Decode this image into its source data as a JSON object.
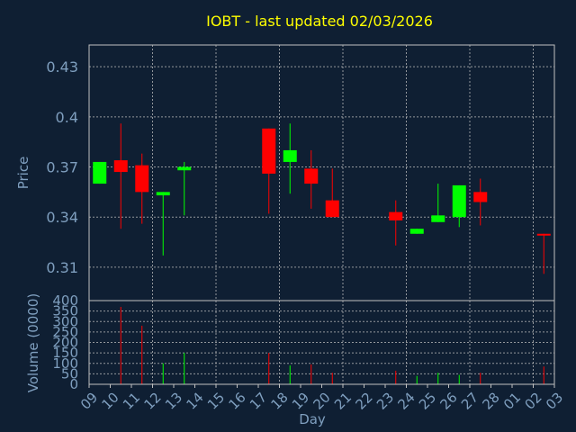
{
  "chart_data": {
    "type": "candlestick",
    "title": "IOBT - last updated 02/03/2026",
    "xlabel": "Day",
    "price_panel": {
      "ylabel": "Price",
      "ylim": [
        0.29,
        0.443
      ],
      "yticks": [
        "0.31",
        "0.34",
        "0.37",
        "0.4",
        "0.43"
      ]
    },
    "volume_panel": {
      "ylabel": "Volume (0000)",
      "ylim": [
        0,
        400
      ],
      "yticks": [
        "0",
        "50",
        "100",
        "150",
        "200",
        "250",
        "300",
        "350",
        "400"
      ]
    },
    "x_ticks": [
      "09",
      "10",
      "11",
      "12",
      "13",
      "14",
      "15",
      "16",
      "17",
      "18",
      "19",
      "20",
      "21",
      "22",
      "23",
      "24",
      "25",
      "26",
      "27",
      "28",
      "01",
      "02",
      "03"
    ],
    "grid": true,
    "colors": {
      "up": "#00ff00",
      "down": "#ff0000",
      "background": "#0f1f33",
      "text": "#7f9fbf",
      "title": "#ffff00"
    },
    "candles": [
      {
        "day": "09",
        "open": 0.36,
        "high": 0.373,
        "low": 0.36,
        "close": 0.373,
        "volume": 0
      },
      {
        "day": "10",
        "open": 0.374,
        "high": 0.396,
        "low": 0.333,
        "close": 0.367,
        "volume": 370
      },
      {
        "day": "11",
        "open": 0.371,
        "high": 0.378,
        "low": 0.336,
        "close": 0.355,
        "volume": 280
      },
      {
        "day": "12",
        "open": 0.353,
        "high": 0.355,
        "low": 0.317,
        "close": 0.355,
        "volume": 100
      },
      {
        "day": "13",
        "open": 0.368,
        "high": 0.373,
        "low": 0.341,
        "close": 0.37,
        "volume": 150
      },
      {
        "day": "17",
        "open": 0.393,
        "high": 0.393,
        "low": 0.342,
        "close": 0.366,
        "volume": 150
      },
      {
        "day": "18",
        "open": 0.373,
        "high": 0.396,
        "low": 0.354,
        "close": 0.38,
        "volume": 90
      },
      {
        "day": "19",
        "open": 0.369,
        "high": 0.38,
        "low": 0.345,
        "close": 0.36,
        "volume": 95
      },
      {
        "day": "20",
        "open": 0.35,
        "high": 0.369,
        "low": 0.34,
        "close": 0.34,
        "volume": 55
      },
      {
        "day": "23",
        "open": 0.343,
        "high": 0.35,
        "low": 0.323,
        "close": 0.338,
        "volume": 65
      },
      {
        "day": "24",
        "open": 0.33,
        "high": 0.333,
        "low": 0.33,
        "close": 0.333,
        "volume": 40
      },
      {
        "day": "25",
        "open": 0.337,
        "high": 0.36,
        "low": 0.337,
        "close": 0.341,
        "volume": 55
      },
      {
        "day": "26",
        "open": 0.34,
        "high": 0.359,
        "low": 0.334,
        "close": 0.359,
        "volume": 45
      },
      {
        "day": "27",
        "open": 0.355,
        "high": 0.363,
        "low": 0.335,
        "close": 0.349,
        "volume": 55
      },
      {
        "day": "02",
        "open": 0.33,
        "high": 0.33,
        "low": 0.306,
        "close": 0.329,
        "volume": 85
      }
    ]
  }
}
